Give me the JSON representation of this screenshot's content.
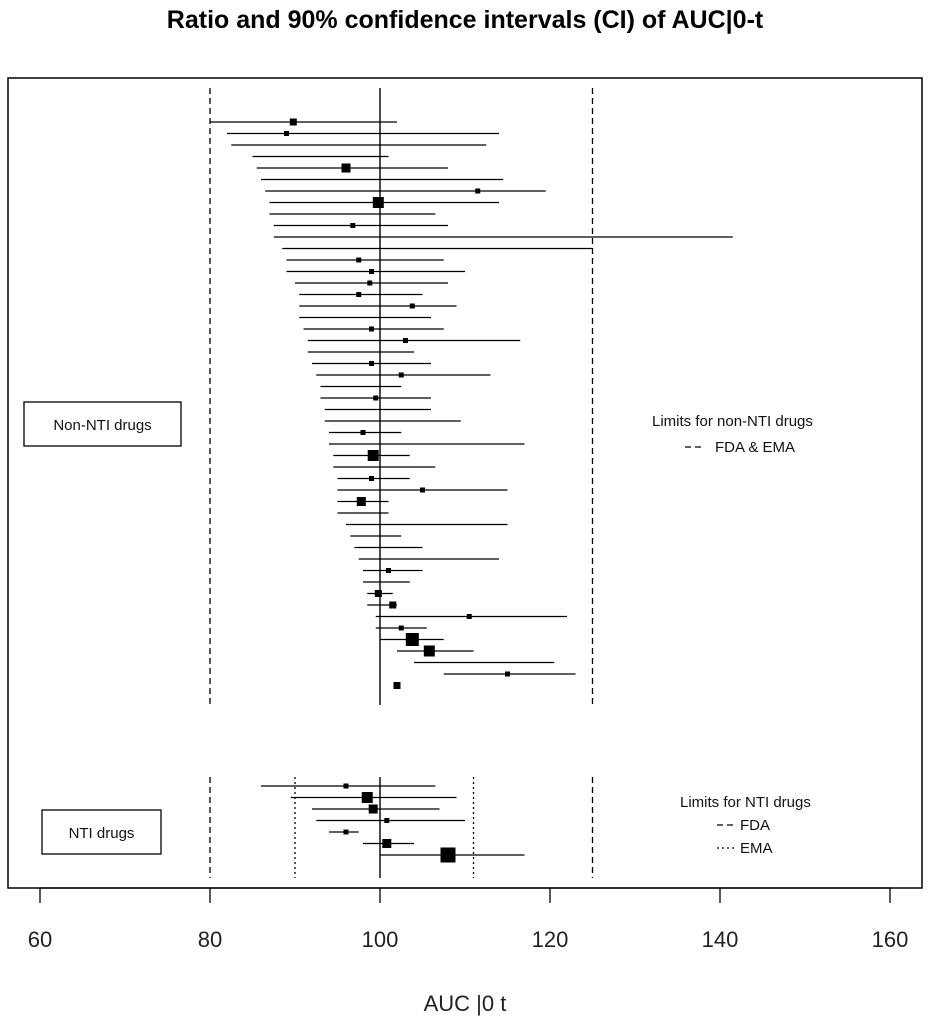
{
  "chart_data": {
    "type": "forest",
    "title": "Ratio and 90% confidence intervals (CI) of AUC|0-t",
    "xlabel": "AUC |0 t",
    "xlim": [
      60,
      160
    ],
    "xticks": [
      60,
      80,
      100,
      120,
      140,
      160
    ],
    "reference_value": 100,
    "groups": [
      {
        "name": "Non-NTI drugs",
        "limits": {
          "legend_title": "Limits for non-NTI drugs",
          "entries": [
            {
              "label": "FDA & EMA",
              "style": "dashed",
              "values": [
                80,
                125
              ]
            }
          ]
        },
        "estimates": [
          {
            "point": 89.8,
            "lower": 80.0,
            "upper": 102.0,
            "weight": 2
          },
          {
            "point": 89.0,
            "lower": 82.0,
            "upper": 114.0,
            "weight": 1
          },
          {
            "point": null,
            "lower": 82.5,
            "upper": 112.5,
            "weight": 0
          },
          {
            "point": null,
            "lower": 85.0,
            "upper": 101.0,
            "weight": 0
          },
          {
            "point": 96.0,
            "lower": 85.5,
            "upper": 108.0,
            "weight": 3
          },
          {
            "point": null,
            "lower": 86.0,
            "upper": 114.5,
            "weight": 0
          },
          {
            "point": 111.5,
            "lower": 86.5,
            "upper": 119.5,
            "weight": 1
          },
          {
            "point": 99.8,
            "lower": 87.0,
            "upper": 114.0,
            "weight": 4
          },
          {
            "point": null,
            "lower": 87.0,
            "upper": 106.5,
            "weight": 0
          },
          {
            "point": 96.8,
            "lower": 87.5,
            "upper": 108.0,
            "weight": 1
          },
          {
            "point": null,
            "lower": 87.5,
            "upper": 141.5,
            "weight": 0
          },
          {
            "point": null,
            "lower": 88.5,
            "upper": 125.0,
            "weight": 0
          },
          {
            "point": 97.5,
            "lower": 89.0,
            "upper": 107.5,
            "weight": 1
          },
          {
            "point": 99.0,
            "lower": 89.0,
            "upper": 110.0,
            "weight": 1
          },
          {
            "point": 98.8,
            "lower": 90.0,
            "upper": 108.0,
            "weight": 1
          },
          {
            "point": 97.5,
            "lower": 90.5,
            "upper": 105.0,
            "weight": 1
          },
          {
            "point": 103.8,
            "lower": 90.5,
            "upper": 109.0,
            "weight": 1
          },
          {
            "point": null,
            "lower": 90.5,
            "upper": 106.0,
            "weight": 0
          },
          {
            "point": 99.0,
            "lower": 91.0,
            "upper": 107.5,
            "weight": 1
          },
          {
            "point": 103.0,
            "lower": 91.5,
            "upper": 116.5,
            "weight": 1
          },
          {
            "point": null,
            "lower": 91.5,
            "upper": 104.0,
            "weight": 0
          },
          {
            "point": 99.0,
            "lower": 92.0,
            "upper": 106.0,
            "weight": 1
          },
          {
            "point": 102.5,
            "lower": 92.5,
            "upper": 113.0,
            "weight": 1
          },
          {
            "point": null,
            "lower": 93.0,
            "upper": 102.5,
            "weight": 0
          },
          {
            "point": 99.5,
            "lower": 93.0,
            "upper": 106.0,
            "weight": 1
          },
          {
            "point": null,
            "lower": 93.5,
            "upper": 106.0,
            "weight": 0
          },
          {
            "point": null,
            "lower": 93.5,
            "upper": 109.5,
            "weight": 0
          },
          {
            "point": 98.0,
            "lower": 94.0,
            "upper": 102.5,
            "weight": 1
          },
          {
            "point": null,
            "lower": 94.0,
            "upper": 117.0,
            "weight": 0
          },
          {
            "point": 99.2,
            "lower": 94.5,
            "upper": 103.5,
            "weight": 4
          },
          {
            "point": null,
            "lower": 94.5,
            "upper": 106.5,
            "weight": 0
          },
          {
            "point": 99.0,
            "lower": 95.0,
            "upper": 103.5,
            "weight": 1
          },
          {
            "point": 105.0,
            "lower": 95.0,
            "upper": 115.0,
            "weight": 1
          },
          {
            "point": 97.8,
            "lower": 95.0,
            "upper": 101.0,
            "weight": 3
          },
          {
            "point": null,
            "lower": 95.0,
            "upper": 101.0,
            "weight": 0
          },
          {
            "point": null,
            "lower": 96.0,
            "upper": 115.0,
            "weight": 0
          },
          {
            "point": null,
            "lower": 96.5,
            "upper": 102.5,
            "weight": 0
          },
          {
            "point": null,
            "lower": 97.0,
            "upper": 105.0,
            "weight": 0
          },
          {
            "point": null,
            "lower": 97.5,
            "upper": 114.0,
            "weight": 0
          },
          {
            "point": 101.0,
            "lower": 98.0,
            "upper": 105.0,
            "weight": 1
          },
          {
            "point": null,
            "lower": 98.0,
            "upper": 103.5,
            "weight": 0
          },
          {
            "point": 99.8,
            "lower": 98.5,
            "upper": 101.5,
            "weight": 2
          },
          {
            "point": 101.5,
            "lower": 98.5,
            "upper": 102.0,
            "weight": 2
          },
          {
            "point": 110.5,
            "lower": 99.5,
            "upper": 122.0,
            "weight": 1
          },
          {
            "point": 102.5,
            "lower": 99.5,
            "upper": 105.5,
            "weight": 1
          },
          {
            "point": 103.8,
            "lower": 100.0,
            "upper": 107.5,
            "weight": 5
          },
          {
            "point": 105.8,
            "lower": 102.0,
            "upper": 111.0,
            "weight": 4
          },
          {
            "point": null,
            "lower": 104.0,
            "upper": 120.5,
            "weight": 0
          },
          {
            "point": 115.0,
            "lower": 107.5,
            "upper": 123.0,
            "weight": 1
          },
          {
            "point": 102.0,
            "lower": null,
            "upper": null,
            "weight": 2
          }
        ]
      },
      {
        "name": "NTI drugs",
        "limits": {
          "legend_title": "Limits for NTI drugs",
          "entries": [
            {
              "label": "FDA",
              "style": "dashed",
              "values": [
                80,
                125
              ]
            },
            {
              "label": "EMA",
              "style": "dotted",
              "values": [
                90,
                111
              ]
            }
          ]
        },
        "estimates": [
          {
            "point": 96.0,
            "lower": 86.0,
            "upper": 106.5,
            "weight": 1
          },
          {
            "point": 98.5,
            "lower": 89.5,
            "upper": 109.0,
            "weight": 4
          },
          {
            "point": 99.2,
            "lower": 92.0,
            "upper": 107.0,
            "weight": 3
          },
          {
            "point": 100.8,
            "lower": 92.5,
            "upper": 110.0,
            "weight": 1
          },
          {
            "point": 96.0,
            "lower": 94.0,
            "upper": 97.5,
            "weight": 1
          },
          {
            "point": 100.8,
            "lower": 98.0,
            "upper": 104.0,
            "weight": 3
          },
          {
            "point": 108.0,
            "lower": 100.0,
            "upper": 117.0,
            "weight": 6
          }
        ]
      }
    ]
  }
}
